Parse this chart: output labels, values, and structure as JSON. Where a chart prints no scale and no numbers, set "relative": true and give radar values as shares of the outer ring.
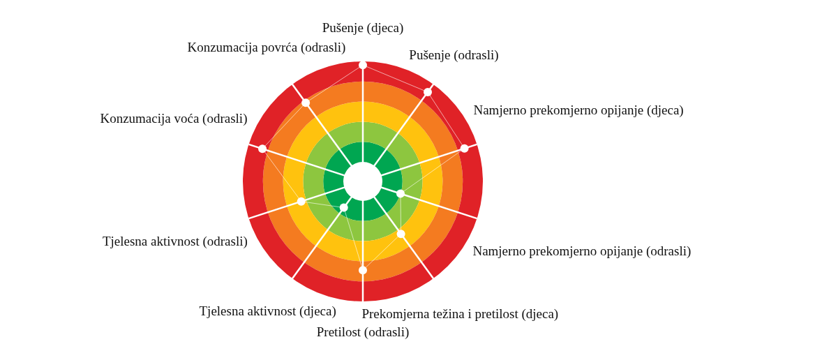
{
  "chart_data": {
    "type": "radar",
    "relative": true,
    "marker": "circle",
    "categories": [
      "Pušenje (djeca)",
      "Pušenje (odrasli)",
      "Namjerno prekomjerno opijanje (djeca)",
      "Namjerno prekomjerno opijanje (odrasli)",
      "Prekomjerna težina i pretilost (djeca)",
      "Pretilost (odrasli)",
      "Tjelesna aktivnost (djeca)",
      "Tjelesna aktivnost (odrasli)",
      "Konzumacija voća (odrasli)",
      "Konzumacija povrća (odrasli)"
    ],
    "series": [
      {
        "color": "#ffffff",
        "values": [
          0.97,
          0.92,
          0.89,
          0.33,
          0.54,
          0.74,
          0.27,
          0.54,
          0.88,
          0.81
        ]
      }
    ],
    "bands": [
      {
        "axis": "y",
        "color": "#00a651"
      },
      {
        "axis": "y",
        "color": "#8dc63f"
      },
      {
        "axis": "y",
        "color": "#ffc20e"
      },
      {
        "axis": "y",
        "color": "#f47b20"
      },
      {
        "axis": "y",
        "color": "#e02227"
      }
    ]
  }
}
